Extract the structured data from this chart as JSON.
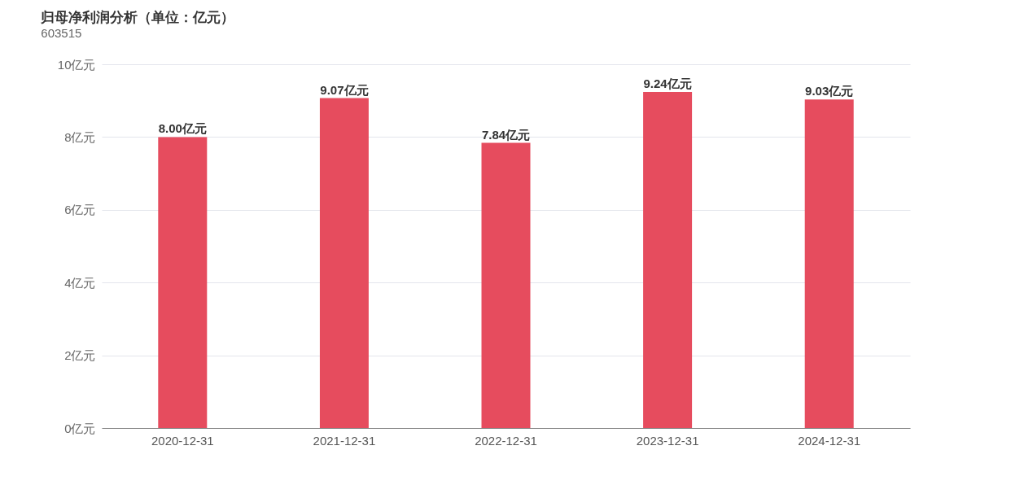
{
  "chart_data": {
    "type": "bar",
    "title": "归母净利润分析（单位：亿元）",
    "subtitle": "603515",
    "categories": [
      "2020-12-31",
      "2021-12-31",
      "2022-12-31",
      "2023-12-31",
      "2024-12-31"
    ],
    "series": [
      {
        "color": "#e64c5e",
        "values": [
          8.0,
          9.07,
          7.84,
          9.24,
          9.03
        ]
      }
    ],
    "value_labels": [
      "8.00亿元",
      "9.07亿元",
      "7.84亿元",
      "9.24亿元",
      "9.03亿元"
    ],
    "ylim": [
      0,
      10
    ],
    "yticks": [
      {
        "value": 0,
        "label": "0亿元"
      },
      {
        "value": 2,
        "label": "2亿元"
      },
      {
        "value": 4,
        "label": "4亿元"
      },
      {
        "value": 6,
        "label": "6亿元"
      },
      {
        "value": 8,
        "label": "8亿元"
      },
      {
        "value": 10,
        "label": "10亿元"
      }
    ],
    "grid": "y"
  }
}
